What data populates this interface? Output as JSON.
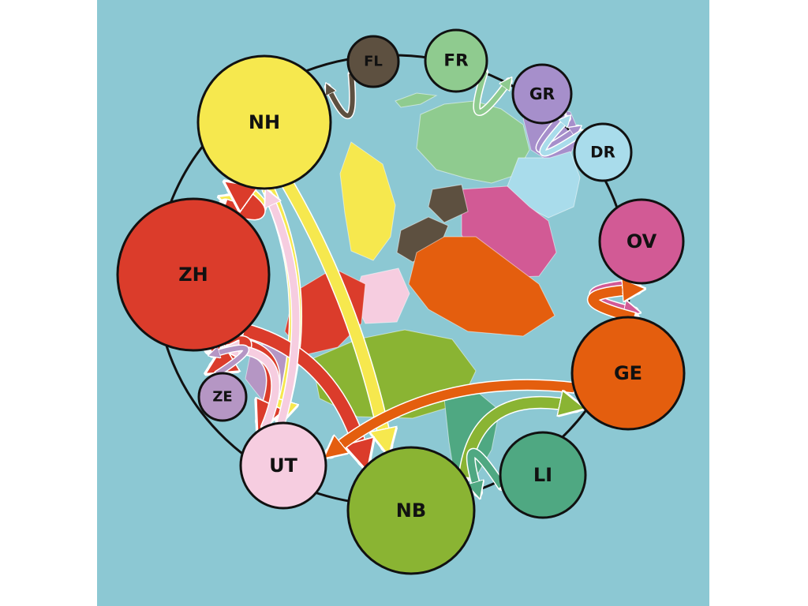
{
  "colors": {
    "background": "#8CC8D3",
    "ring": "#111111",
    "NH": "#F6E84E",
    "ZH": "#DB3C2B",
    "UT": "#F6CDE0",
    "NB": "#8AB433",
    "GE": "#E45E0E",
    "LI": "#4FA882",
    "ZE": "#B596C4",
    "FL": "#5D5040",
    "FR": "#8FCB8F",
    "GR": "#A68FCB",
    "DR": "#A9DCEB",
    "OV": "#D25A95"
  },
  "nodes": [
    {
      "id": "NH",
      "label": "NH"
    },
    {
      "id": "ZH",
      "label": "ZH"
    },
    {
      "id": "UT",
      "label": "UT"
    },
    {
      "id": "NB",
      "label": "NB"
    },
    {
      "id": "GE",
      "label": "GE"
    },
    {
      "id": "LI",
      "label": "LI"
    },
    {
      "id": "ZE",
      "label": "ZE"
    },
    {
      "id": "FL",
      "label": "FL"
    },
    {
      "id": "FR",
      "label": "FR"
    },
    {
      "id": "GR",
      "label": "GR"
    },
    {
      "id": "DR",
      "label": "DR"
    },
    {
      "id": "OV",
      "label": "OV"
    }
  ],
  "flows": [
    {
      "from": "NH",
      "to": "ZH",
      "color": "NH"
    },
    {
      "from": "NH",
      "to": "UT",
      "color": "NH"
    },
    {
      "from": "NH",
      "to": "NB",
      "color": "NH"
    },
    {
      "from": "ZH",
      "to": "NH",
      "color": "ZH"
    },
    {
      "from": "ZH",
      "to": "UT",
      "color": "ZH"
    },
    {
      "from": "ZH",
      "to": "NB",
      "color": "ZH"
    },
    {
      "from": "ZH",
      "to": "ZE",
      "color": "ZH"
    },
    {
      "from": "UT",
      "to": "NH",
      "color": "UT"
    },
    {
      "from": "UT",
      "to": "ZH",
      "color": "UT"
    },
    {
      "from": "FL",
      "to": "NH",
      "color": "FL"
    },
    {
      "from": "FR",
      "to": "GR",
      "color": "FR"
    },
    {
      "from": "GR",
      "to": "DR",
      "color": "GR"
    },
    {
      "from": "DR",
      "to": "GR",
      "color": "DR"
    },
    {
      "from": "OV",
      "to": "GE",
      "color": "OV"
    },
    {
      "from": "GE",
      "to": "OV",
      "color": "GE"
    },
    {
      "from": "GE",
      "to": "UT",
      "color": "GE"
    },
    {
      "from": "NB",
      "to": "GE",
      "color": "NB"
    },
    {
      "from": "LI",
      "to": "NB",
      "color": "LI"
    },
    {
      "from": "ZE",
      "to": "ZH",
      "color": "ZE"
    }
  ]
}
